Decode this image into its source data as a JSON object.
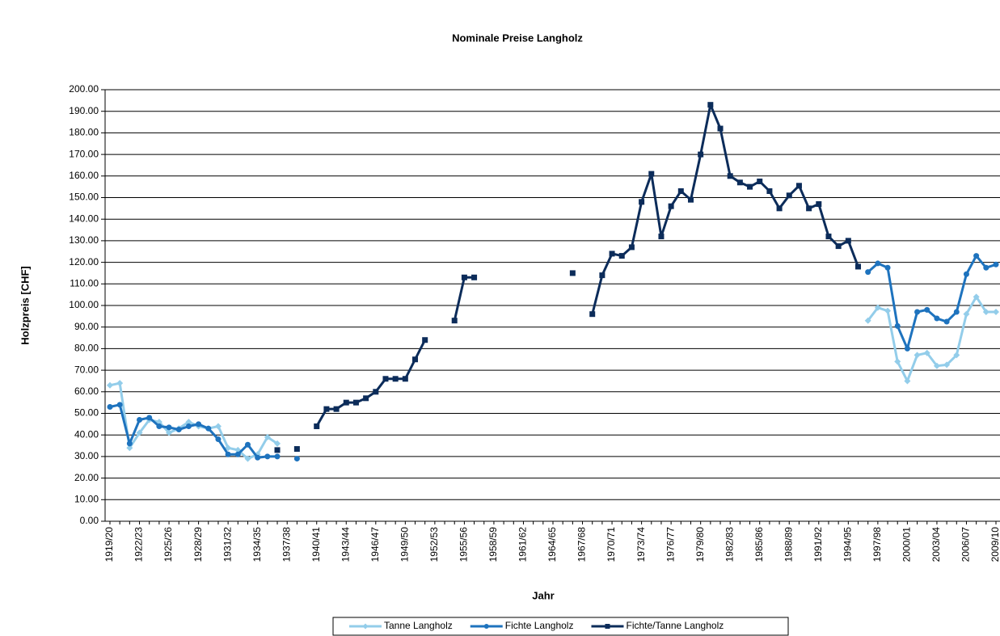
{
  "chart_data": {
    "type": "line",
    "title": "Nominale Preise Langholz",
    "xlabel": "Jahr",
    "ylabel": "Holzpreis [CHF]",
    "categories": [
      "1919/20",
      null,
      null,
      "1922/23",
      null,
      null,
      "1925/26",
      null,
      null,
      "1928/29",
      null,
      null,
      "1931/32",
      null,
      null,
      "1934/35",
      null,
      null,
      "1937/38",
      null,
      null,
      "1940/41",
      null,
      null,
      "1943/44",
      null,
      null,
      "1946/47",
      null,
      null,
      "1949/50",
      null,
      null,
      "1952/53",
      null,
      null,
      "1955/56",
      null,
      null,
      "1958/59",
      null,
      null,
      "1961/62",
      null,
      null,
      "1964/65",
      null,
      null,
      "1967/68",
      null,
      null,
      "1970/71",
      null,
      null,
      "1973/74",
      null,
      null,
      "1976/77",
      null,
      null,
      "1979/80",
      null,
      null,
      "1982/83",
      null,
      null,
      "1985/86",
      null,
      null,
      "1988/89",
      null,
      null,
      "1991/92",
      null,
      null,
      "1994/95",
      null,
      null,
      "1997/98",
      null,
      null,
      "2000/01",
      null,
      null,
      "2003/04",
      null,
      null,
      "2006/07",
      null,
      null,
      "2009/10"
    ],
    "series": [
      {
        "name": "Tanne Langholz",
        "color": "#93cdea",
        "marker": "diamond",
        "values": [
          63,
          64,
          34,
          41,
          47,
          46,
          41,
          43,
          46,
          44,
          43,
          44,
          34,
          33,
          29,
          31,
          39,
          36,
          null,
          null,
          null,
          null,
          null,
          null,
          null,
          null,
          null,
          null,
          null,
          null,
          null,
          null,
          null,
          null,
          null,
          null,
          null,
          null,
          null,
          null,
          null,
          null,
          null,
          null,
          null,
          null,
          null,
          null,
          null,
          null,
          null,
          null,
          null,
          null,
          null,
          null,
          null,
          null,
          null,
          null,
          null,
          null,
          null,
          null,
          null,
          null,
          null,
          null,
          null,
          null,
          null,
          null,
          null,
          null,
          null,
          null,
          null,
          93,
          99,
          97.5,
          74,
          65,
          77,
          78,
          72,
          72.5,
          77,
          96,
          104,
          97,
          97
        ]
      },
      {
        "name": "Fichte Langholz",
        "color": "#1e73be",
        "marker": "circle",
        "values": [
          53,
          54,
          36,
          47,
          48,
          44,
          43.5,
          42.5,
          44,
          45,
          43,
          38,
          31,
          31,
          35.5,
          29.5,
          30,
          30,
          null,
          29,
          null,
          null,
          null,
          null,
          null,
          null,
          null,
          null,
          null,
          null,
          null,
          null,
          null,
          null,
          null,
          null,
          null,
          null,
          null,
          null,
          null,
          null,
          null,
          null,
          null,
          null,
          null,
          null,
          null,
          null,
          null,
          null,
          null,
          null,
          null,
          null,
          null,
          null,
          null,
          null,
          null,
          null,
          null,
          null,
          null,
          null,
          null,
          null,
          null,
          null,
          null,
          null,
          null,
          null,
          null,
          null,
          null,
          115.5,
          119.5,
          117.5,
          90.5,
          80,
          97,
          98,
          94,
          92.5,
          97,
          114.5,
          123,
          117.5,
          119
        ]
      },
      {
        "name": "Fichte/Tanne Langholz",
        "color": "#0c2c5a",
        "marker": "square",
        "values": [
          null,
          null,
          null,
          null,
          null,
          null,
          null,
          null,
          null,
          null,
          null,
          null,
          null,
          null,
          null,
          null,
          null,
          33,
          null,
          33.5,
          null,
          44,
          52,
          52,
          55,
          55,
          57,
          60,
          66,
          66,
          66,
          75,
          84,
          null,
          null,
          93,
          113,
          113,
          null,
          null,
          null,
          null,
          null,
          null,
          null,
          null,
          null,
          115,
          null,
          96,
          114,
          124,
          123,
          127,
          148,
          161,
          132,
          146,
          153,
          149,
          170,
          193,
          182,
          160,
          157,
          155,
          157.5,
          153,
          145,
          151,
          155.5,
          145,
          147,
          132,
          127.5,
          130,
          118,
          null,
          null,
          null,
          null,
          null,
          null,
          null,
          null,
          null,
          null,
          null,
          null,
          null,
          null
        ]
      }
    ],
    "ylim": [
      0,
      200
    ],
    "yticks": [
      {
        "value": 0,
        "label": "0.00"
      },
      {
        "value": 10,
        "label": "10.00"
      },
      {
        "value": 20,
        "label": "20.00"
      },
      {
        "value": 30,
        "label": "30.00"
      },
      {
        "value": 40,
        "label": "40.00"
      },
      {
        "value": 50,
        "label": "50.00"
      },
      {
        "value": 60,
        "label": "60.00"
      },
      {
        "value": 70,
        "label": "70.00"
      },
      {
        "value": 80,
        "label": "80.00"
      },
      {
        "value": 90,
        "label": "90.00"
      },
      {
        "value": 100,
        "label": "100.00"
      },
      {
        "value": 110,
        "label": "110.00"
      },
      {
        "value": 120,
        "label": "120.00"
      },
      {
        "value": 130,
        "label": "130.00"
      },
      {
        "value": 140,
        "label": "140.00"
      },
      {
        "value": 150,
        "label": "150.00"
      },
      {
        "value": 160,
        "label": "160.00"
      },
      {
        "value": 170,
        "label": "170.00"
      },
      {
        "value": 180,
        "label": "180.00"
      },
      {
        "value": 190,
        "label": "190.00"
      },
      {
        "value": 200,
        "label": "200.00"
      }
    ],
    "grid": true,
    "legend": "bottom"
  }
}
